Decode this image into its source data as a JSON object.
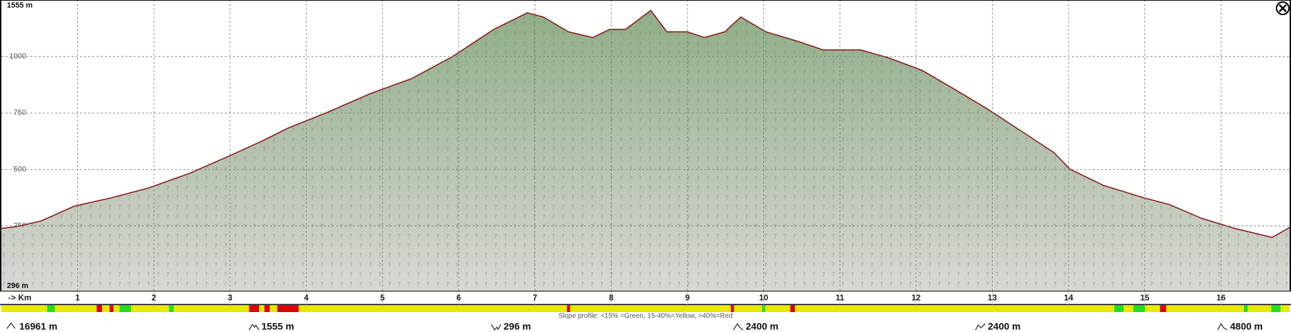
{
  "chart_data": {
    "type": "area",
    "max_label": "1555 m",
    "min_label": "296 m",
    "x_axis_label": "-> Km",
    "x": [
      0,
      0.2,
      0.52,
      0.96,
      1.44,
      1.93,
      2.47,
      3.01,
      3.44,
      3.76,
      4.3,
      4.84,
      5.38,
      5.92,
      6.46,
      6.9,
      7.11,
      7.44,
      7.76,
      7.98,
      8.19,
      8.52,
      8.73,
      9.0,
      9.22,
      9.49,
      9.7,
      10.03,
      10.46,
      10.78,
      11.27,
      11.65,
      12.08,
      12.51,
      12.94,
      13.37,
      13.81,
      14.02,
      14.46,
      14.99,
      15.32,
      15.75,
      16.18,
      16.67,
      16.92
    ],
    "values": [
      239,
      247,
      272,
      338,
      374,
      418,
      483,
      563,
      629,
      683,
      756,
      836,
      902,
      1000,
      1120,
      1193,
      1175,
      1109,
      1084,
      1120,
      1120,
      1204,
      1109,
      1109,
      1084,
      1109,
      1175,
      1109,
      1066,
      1029,
      1029,
      993,
      938,
      854,
      767,
      672,
      574,
      501,
      429,
      374,
      345,
      283,
      239,
      199,
      247
    ],
    "color": "#8b1a1a",
    "xlim": [
      0,
      16.9
    ],
    "ylim": [
      -40,
      1250
    ],
    "xticks": [
      1,
      2,
      3,
      4,
      5,
      6,
      7,
      8,
      9,
      10,
      11,
      12,
      13,
      14,
      15,
      16
    ],
    "yticks": [
      250,
      500,
      750,
      1000
    ],
    "grid": true,
    "slope_legend": "Slope profile: <15% =Green, 15-40%=Yellow, >40%=Red",
    "slope_base_color": "#e8e800",
    "slope_segments": [
      {
        "from": 0.6,
        "to": 0.7,
        "color": "#22dd22"
      },
      {
        "from": 1.25,
        "to": 1.32,
        "color": "#dd0000"
      },
      {
        "from": 1.42,
        "to": 1.47,
        "color": "#dd0000"
      },
      {
        "from": 1.55,
        "to": 1.7,
        "color": "#22dd22"
      },
      {
        "from": 2.2,
        "to": 2.26,
        "color": "#22dd22"
      },
      {
        "from": 3.25,
        "to": 3.38,
        "color": "#dd0000"
      },
      {
        "from": 3.45,
        "to": 3.52,
        "color": "#dd0000"
      },
      {
        "from": 3.62,
        "to": 3.9,
        "color": "#dd0000"
      },
      {
        "from": 7.42,
        "to": 7.46,
        "color": "#dd0000"
      },
      {
        "from": 9.57,
        "to": 9.61,
        "color": "#dd0000"
      },
      {
        "from": 9.98,
        "to": 10.02,
        "color": "#22dd22"
      },
      {
        "from": 10.35,
        "to": 10.41,
        "color": "#dd0000"
      },
      {
        "from": 14.6,
        "to": 14.72,
        "color": "#22dd22"
      },
      {
        "from": 14.85,
        "to": 15.0,
        "color": "#22dd22"
      },
      {
        "from": 15.2,
        "to": 15.28,
        "color": "#dd0000"
      },
      {
        "from": 16.3,
        "to": 16.35,
        "color": "#22dd22"
      },
      {
        "from": 16.66,
        "to": 16.78,
        "color": "#22dd22"
      }
    ],
    "stats": [
      "16961 m",
      "1555 m",
      "296 m",
      "2400 m",
      "2400 m",
      "4800 m"
    ]
  }
}
